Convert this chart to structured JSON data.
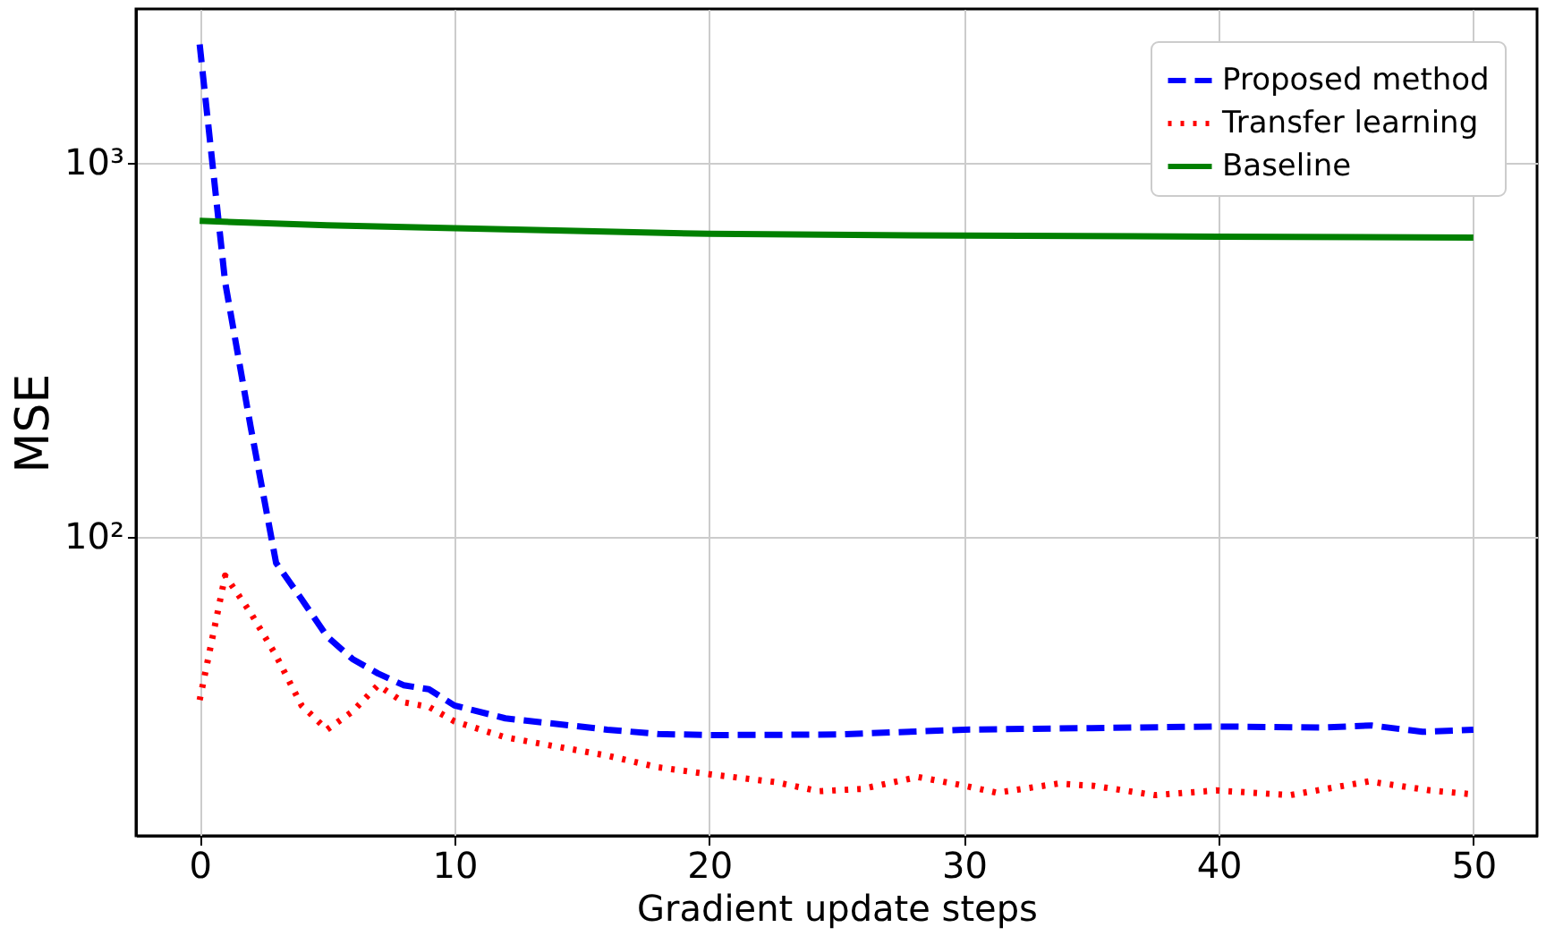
{
  "chart_data": {
    "type": "line",
    "xlabel": "Gradient update steps",
    "ylabel": "MSE",
    "log": "y",
    "grid": true,
    "legend": "top right",
    "xlim": [
      -2.5,
      52.5
    ],
    "xticks": [
      0,
      10,
      20,
      30,
      40,
      50
    ],
    "ylim": [
      15.8,
      2590
    ],
    "yticks": [
      {
        "value": 100,
        "label": "10²"
      },
      {
        "value": 1000,
        "label": "10³"
      }
    ],
    "series": [
      {
        "name": "Proposed method",
        "color": "#0000ff",
        "line_style": "dashed",
        "x": [
          0,
          1,
          2,
          3,
          4,
          5,
          6,
          7,
          8,
          9,
          10,
          12,
          14,
          16,
          18,
          20,
          25,
          30,
          35,
          40,
          44,
          46,
          48,
          50
        ],
        "values": [
          2080,
          480,
          197,
          85,
          68,
          54,
          47,
          43,
          40,
          39,
          35.3,
          32.6,
          31.5,
          30.4,
          29.6,
          29.4,
          29.5,
          30.4,
          30.7,
          31,
          30.8,
          31.2,
          30,
          30.4
        ]
      },
      {
        "name": "Transfer learning",
        "color": "#ff0000",
        "line_style": "dotted",
        "x": [
          0,
          1,
          2,
          3,
          4,
          5,
          6,
          7,
          8,
          9,
          10,
          12,
          14,
          16,
          18,
          20,
          22.6,
          24.3,
          26,
          28.2,
          29.9,
          31.3,
          33.7,
          35.1,
          37.5,
          39.9,
          42.8,
          45.9,
          48.3,
          50
        ],
        "values": [
          36.5,
          78.6,
          62.5,
          48,
          35.3,
          30.4,
          34,
          40,
          36,
          35,
          32,
          29,
          27.4,
          25.9,
          24.1,
          23.1,
          22,
          20.8,
          21.1,
          22.7,
          21.6,
          20.6,
          21.8,
          21.5,
          20.3,
          20.9,
          20.3,
          22.1,
          20.9,
          20.4
        ]
      },
      {
        "name": "Baseline",
        "color": "#008000",
        "line_style": "solid",
        "x": [
          0,
          5,
          10,
          20,
          30,
          40,
          50
        ],
        "values": [
          701,
          682,
          670,
          647,
          640,
          636,
          632
        ]
      }
    ]
  }
}
